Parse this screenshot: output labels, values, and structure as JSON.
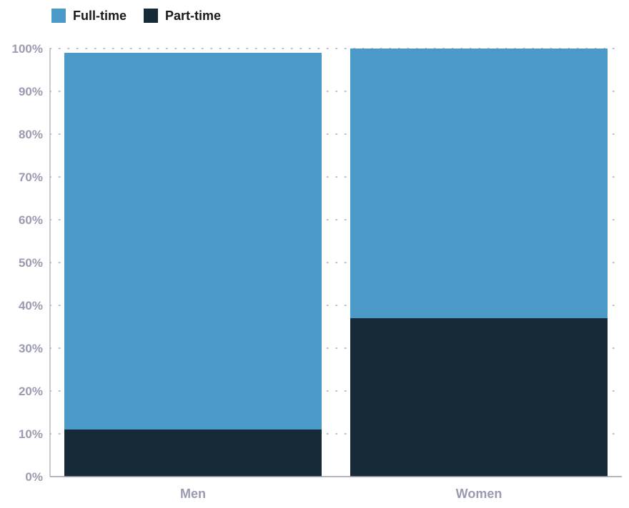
{
  "chart_data": {
    "type": "bar",
    "stacked": true,
    "categories": [
      "Men",
      "Women"
    ],
    "series": [
      {
        "name": "Part-time",
        "values": [
          11,
          37
        ],
        "color": "#162a38"
      },
      {
        "name": "Full-time",
        "values": [
          88,
          63
        ],
        "color": "#4a99c8"
      }
    ],
    "legend_order": [
      "Full-time",
      "Part-time"
    ],
    "ylim": [
      0,
      100
    ],
    "yticks": [
      0,
      10,
      20,
      30,
      40,
      50,
      60,
      70,
      80,
      90,
      100
    ],
    "ytick_labels": [
      "0%",
      "10%",
      "20%",
      "30%",
      "40%",
      "50%",
      "60%",
      "70%",
      "80%",
      "90%",
      "100%"
    ],
    "grid": true,
    "legend_position": "top-left"
  },
  "legend": {
    "items": [
      {
        "label": "Full-time",
        "color": "#4a99c8"
      },
      {
        "label": "Part-time",
        "color": "#162a38"
      }
    ]
  }
}
